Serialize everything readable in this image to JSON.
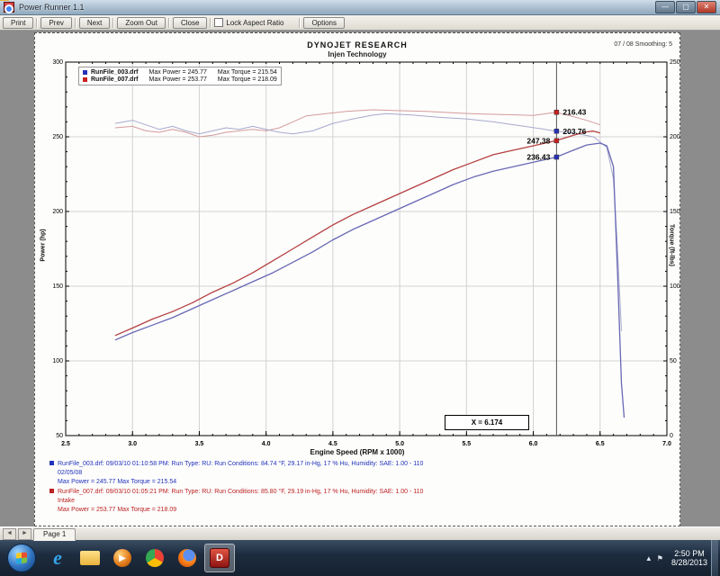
{
  "window": {
    "title": "Power Runner 1.1",
    "controls": {
      "minimize": "—",
      "maximize": "▢",
      "close": "✕"
    }
  },
  "toolbar": {
    "buttons": [
      "Print",
      "Prev",
      "Next",
      "Zoom Out",
      "Close"
    ],
    "lock_aspect_label": "Lock Aspect Ratio",
    "options_label": "Options",
    "lock_aspect_checked": false
  },
  "chart_data": {
    "type": "line",
    "title": "DYNOJET RESEARCH",
    "subtitle": "Injen Technology",
    "meta_right": "07 / 08    Smoothing: 5",
    "xlabel": "Engine Speed (RPM x 1000)",
    "ylabel_left": "Power (hp)",
    "ylabel_right": "Torque (ft-lbs)",
    "xlim": [
      2.5,
      7.0
    ],
    "x_major_step": 0.5,
    "x_minor_step": 0.1,
    "ylim_left": [
      50,
      300
    ],
    "ylim_right": [
      0,
      250
    ],
    "y_major_step": 50,
    "y_minor_step": 10,
    "grid": true,
    "x_tick_labels": [
      "2.5",
      "3.0",
      "3.5",
      "4.0",
      "4.5",
      "5.0",
      "5.5",
      "6.0",
      "6.5",
      "7.0"
    ],
    "y_left_tick_labels": [
      "300",
      "250",
      "200",
      "150",
      "100",
      "50"
    ],
    "y_right_tick_labels": [
      "250",
      "200",
      "150",
      "100",
      "50",
      "0"
    ],
    "colors": {
      "power_blue": "#6868b4",
      "power_red": "#b44040",
      "torque_blue": "#a8aacd",
      "torque_red": "#d49c9c",
      "marker_blue": "#2830b8",
      "marker_red": "#c82020",
      "grid": "#d2d2d2",
      "frame": "#000000",
      "cursor_line": "#555555"
    },
    "legend": [
      {
        "color": "#2830b8",
        "name": "RunFile_003.drf",
        "max_power_label": "Max Power = 245.77",
        "max_torque_label": "Max Torque = 215.54"
      },
      {
        "color": "#c82020",
        "name": "RunFile_007.drf",
        "max_power_label": "Max Power = 253.77",
        "max_torque_label": "Max Torque = 218.09"
      }
    ],
    "cursor": {
      "x": 6.174,
      "label": "X = 6.174",
      "points": [
        {
          "series": "torque_red",
          "value": 216.43,
          "label": "216.43",
          "side": "right",
          "color": "#c82020"
        },
        {
          "series": "torque_blue",
          "value": 203.76,
          "label": "203.76",
          "side": "right",
          "color": "#2830b8"
        },
        {
          "series": "power_red",
          "value": 247.38,
          "label": "247.38",
          "side": "left",
          "color": "#c82020"
        },
        {
          "series": "power_blue",
          "value": 236.43,
          "label": "236.43",
          "side": "left",
          "color": "#2830b8"
        }
      ]
    },
    "series": [
      {
        "id": "torque_red",
        "axis": "right",
        "width": 1,
        "points": [
          [
            2.87,
            206
          ],
          [
            3.0,
            207
          ],
          [
            3.1,
            204
          ],
          [
            3.2,
            203
          ],
          [
            3.3,
            205
          ],
          [
            3.4,
            203
          ],
          [
            3.5,
            200
          ],
          [
            3.6,
            201
          ],
          [
            3.7,
            203
          ],
          [
            3.8,
            204
          ],
          [
            3.9,
            205
          ],
          [
            4.0,
            204
          ],
          [
            4.1,
            206
          ],
          [
            4.2,
            210
          ],
          [
            4.3,
            214
          ],
          [
            4.45,
            215.5
          ],
          [
            4.6,
            217
          ],
          [
            4.8,
            218.1
          ],
          [
            5.0,
            217.5
          ],
          [
            5.2,
            217
          ],
          [
            5.4,
            216
          ],
          [
            5.6,
            215.3
          ],
          [
            5.8,
            214.8
          ],
          [
            6.0,
            214.3
          ],
          [
            6.17,
            216.4
          ],
          [
            6.3,
            213.5
          ],
          [
            6.4,
            211
          ],
          [
            6.5,
            208
          ]
        ]
      },
      {
        "id": "torque_blue",
        "axis": "right",
        "width": 1,
        "points": [
          [
            2.87,
            209
          ],
          [
            3.0,
            211
          ],
          [
            3.1,
            208
          ],
          [
            3.2,
            205
          ],
          [
            3.3,
            207
          ],
          [
            3.4,
            204
          ],
          [
            3.5,
            202
          ],
          [
            3.6,
            204
          ],
          [
            3.7,
            206
          ],
          [
            3.8,
            205
          ],
          [
            3.9,
            207
          ],
          [
            4.0,
            205
          ],
          [
            4.1,
            203
          ],
          [
            4.2,
            202
          ],
          [
            4.35,
            204
          ],
          [
            4.5,
            209
          ],
          [
            4.65,
            212
          ],
          [
            4.8,
            214.5
          ],
          [
            4.9,
            215.5
          ],
          [
            5.1,
            214.5
          ],
          [
            5.3,
            213
          ],
          [
            5.5,
            212
          ],
          [
            5.7,
            210
          ],
          [
            5.9,
            207.5
          ],
          [
            6.05,
            205.5
          ],
          [
            6.17,
            203.8
          ],
          [
            6.3,
            202.5
          ],
          [
            6.45,
            200
          ],
          [
            6.55,
            193
          ],
          [
            6.6,
            172
          ],
          [
            6.63,
            125
          ],
          [
            6.66,
            70
          ]
        ]
      },
      {
        "id": "power_red",
        "axis": "left",
        "width": 1.3,
        "points": [
          [
            2.87,
            117
          ],
          [
            3.0,
            122
          ],
          [
            3.15,
            128
          ],
          [
            3.3,
            133
          ],
          [
            3.45,
            139
          ],
          [
            3.6,
            146
          ],
          [
            3.75,
            152
          ],
          [
            3.9,
            159
          ],
          [
            4.05,
            167
          ],
          [
            4.2,
            175
          ],
          [
            4.35,
            183
          ],
          [
            4.5,
            191
          ],
          [
            4.65,
            198
          ],
          [
            4.8,
            204
          ],
          [
            4.95,
            210
          ],
          [
            5.1,
            216
          ],
          [
            5.25,
            222
          ],
          [
            5.4,
            228
          ],
          [
            5.55,
            233
          ],
          [
            5.7,
            238
          ],
          [
            5.85,
            241
          ],
          [
            6.0,
            244
          ],
          [
            6.17,
            247.4
          ],
          [
            6.3,
            251
          ],
          [
            6.4,
            253.3
          ],
          [
            6.45,
            253.8
          ],
          [
            6.5,
            252.5
          ]
        ]
      },
      {
        "id": "power_blue",
        "axis": "left",
        "width": 1.3,
        "points": [
          [
            2.87,
            114
          ],
          [
            3.0,
            119
          ],
          [
            3.15,
            124
          ],
          [
            3.3,
            129
          ],
          [
            3.45,
            135
          ],
          [
            3.6,
            141
          ],
          [
            3.75,
            147
          ],
          [
            3.9,
            153
          ],
          [
            4.05,
            159
          ],
          [
            4.2,
            166
          ],
          [
            4.35,
            173
          ],
          [
            4.5,
            181
          ],
          [
            4.65,
            188
          ],
          [
            4.8,
            194
          ],
          [
            4.95,
            200
          ],
          [
            5.1,
            206
          ],
          [
            5.25,
            212
          ],
          [
            5.4,
            218
          ],
          [
            5.55,
            223
          ],
          [
            5.7,
            227
          ],
          [
            5.85,
            230
          ],
          [
            6.0,
            233
          ],
          [
            6.17,
            236.4
          ],
          [
            6.3,
            241
          ],
          [
            6.4,
            244.5
          ],
          [
            6.5,
            245.8
          ],
          [
            6.55,
            244
          ],
          [
            6.6,
            230
          ],
          [
            6.63,
            160
          ],
          [
            6.66,
            85
          ],
          [
            6.68,
            62
          ]
        ]
      }
    ]
  },
  "annotations": [
    {
      "color": "#2233bb",
      "lines": [
        "RunFile_003.drf: 09/03/10 01:10:58 PM: Run Type: RU: Run Conditions: 84.74 °F, 29.17 in-Hg, 17 % Hu, Humidity: SAE: 1.00 - 110",
        "02/05/08",
        "Max Power = 245.77   Max Torque = 215.54"
      ]
    },
    {
      "color": "#bb2222",
      "lines": [
        "RunFile_007.drf: 09/03/10 01:05:21 PM: Run Type: RU: Run Conditions: 85.80 °F, 29.19 in-Hg, 17 % Hu, Humidity: SAE: 1.00 - 110",
        "Intake",
        "Max Power = 253.77   Max Torque = 218.09"
      ]
    }
  ],
  "statusbar": {
    "prev_glyph": "◄",
    "next_glyph": "►",
    "page_label": "Page 1"
  },
  "taskbar": {
    "icons": [
      "internet-explorer",
      "windows-explorer",
      "windows-media-player",
      "google-chrome",
      "firefox",
      "dyno-app"
    ],
    "active_icon": "dyno-app",
    "tray": {
      "hidden_icons_glyph": "▲",
      "flag_glyph": "⚑",
      "time": "2:50 PM",
      "date": "8/28/2013"
    }
  }
}
